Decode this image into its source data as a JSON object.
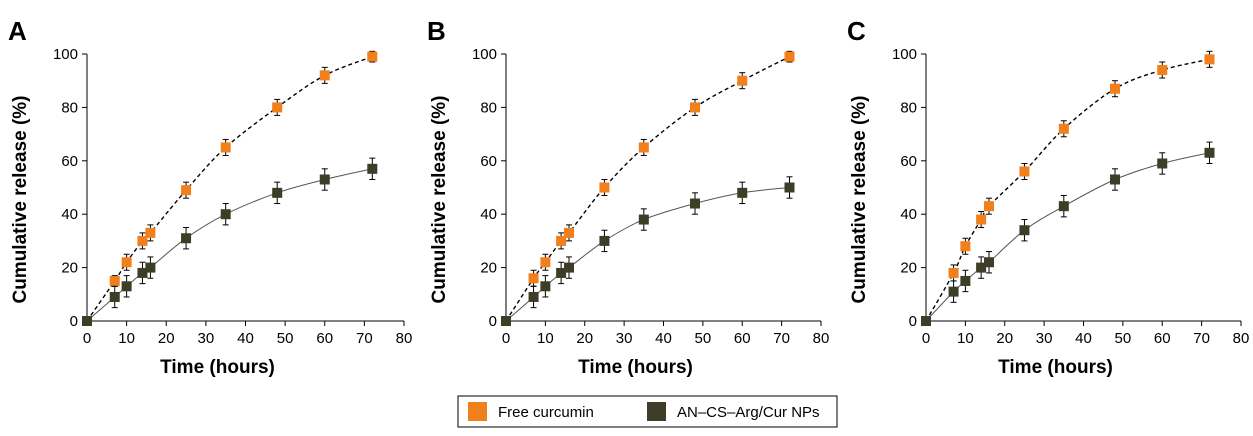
{
  "chart_data": [
    {
      "type": "scatter",
      "panel": "A",
      "xlabel": "Time (hours)",
      "ylabel": "Cumulative release (%)",
      "xlim": [
        0,
        80
      ],
      "ylim": [
        0,
        100
      ],
      "xticks": [
        0,
        10,
        20,
        30,
        40,
        50,
        60,
        70,
        80
      ],
      "yticks": [
        0,
        20,
        40,
        60,
        80,
        100
      ],
      "series": [
        {
          "name": "Free curcumin",
          "color": "#f07f1c",
          "line_style": "dashed",
          "x": [
            0,
            7,
            10,
            14,
            16,
            25,
            35,
            48,
            60,
            72
          ],
          "y": [
            0,
            15,
            22,
            30,
            33,
            49,
            65,
            80,
            92,
            99
          ],
          "error": [
            1,
            2,
            3,
            3,
            3,
            3,
            3,
            3,
            3,
            2
          ]
        },
        {
          "name": "AN–CS–Arg/Cur NPs",
          "color": "#3d3d28",
          "line_style": "solid",
          "x": [
            0,
            7,
            10,
            14,
            16,
            25,
            35,
            48,
            60,
            72
          ],
          "y": [
            0,
            9,
            13,
            18,
            20,
            31,
            40,
            48,
            53,
            57
          ],
          "error": [
            1,
            4,
            4,
            4,
            4,
            4,
            4,
            4,
            4,
            4
          ]
        }
      ]
    },
    {
      "type": "scatter",
      "panel": "B",
      "xlabel": "Time (hours)",
      "ylabel": "Cumulative release (%)",
      "xlim": [
        0,
        80
      ],
      "ylim": [
        0,
        100
      ],
      "xticks": [
        0,
        10,
        20,
        30,
        40,
        50,
        60,
        70,
        80
      ],
      "yticks": [
        0,
        20,
        40,
        60,
        80,
        100
      ],
      "series": [
        {
          "name": "Free curcumin",
          "color": "#f07f1c",
          "line_style": "dashed",
          "x": [
            0,
            7,
            10,
            14,
            16,
            25,
            35,
            48,
            60,
            72
          ],
          "y": [
            0,
            16,
            22,
            30,
            33,
            50,
            65,
            80,
            90,
            99
          ],
          "error": [
            1,
            3,
            3,
            3,
            3,
            3,
            3,
            3,
            3,
            2
          ]
        },
        {
          "name": "AN–CS–Arg/Cur NPs",
          "color": "#3d3d28",
          "line_style": "solid",
          "x": [
            0,
            7,
            10,
            14,
            16,
            25,
            35,
            48,
            60,
            72
          ],
          "y": [
            0,
            9,
            13,
            18,
            20,
            30,
            38,
            44,
            48,
            50
          ],
          "error": [
            1,
            4,
            4,
            4,
            4,
            4,
            4,
            4,
            4,
            4
          ]
        }
      ]
    },
    {
      "type": "scatter",
      "panel": "C",
      "xlabel": "Time (hours)",
      "ylabel": "Cumulative release (%)",
      "xlim": [
        0,
        80
      ],
      "ylim": [
        0,
        100
      ],
      "xticks": [
        0,
        10,
        20,
        30,
        40,
        50,
        60,
        70,
        80
      ],
      "yticks": [
        0,
        20,
        40,
        60,
        80,
        100
      ],
      "series": [
        {
          "name": "Free curcumin",
          "color": "#f07f1c",
          "line_style": "dashed",
          "x": [
            0,
            7,
            10,
            14,
            16,
            25,
            35,
            48,
            60,
            72
          ],
          "y": [
            0,
            18,
            28,
            38,
            43,
            56,
            72,
            87,
            94,
            98
          ],
          "error": [
            1,
            3,
            3,
            3,
            3,
            3,
            3,
            3,
            3,
            3
          ]
        },
        {
          "name": "AN–CS–Arg/Cur NPs",
          "color": "#3d3d28",
          "line_style": "solid",
          "x": [
            0,
            7,
            10,
            14,
            16,
            25,
            35,
            48,
            60,
            72
          ],
          "y": [
            0,
            11,
            15,
            20,
            22,
            34,
            43,
            53,
            59,
            63
          ],
          "error": [
            1,
            4,
            4,
            4,
            4,
            4,
            4,
            4,
            4,
            4
          ]
        }
      ]
    }
  ],
  "legend": {
    "placement": "bottom-center",
    "entries": [
      {
        "label": "Free curcumin",
        "color": "#f07f1c"
      },
      {
        "label": "AN–CS–Arg/Cur NPs",
        "color": "#3d3d28"
      }
    ]
  }
}
